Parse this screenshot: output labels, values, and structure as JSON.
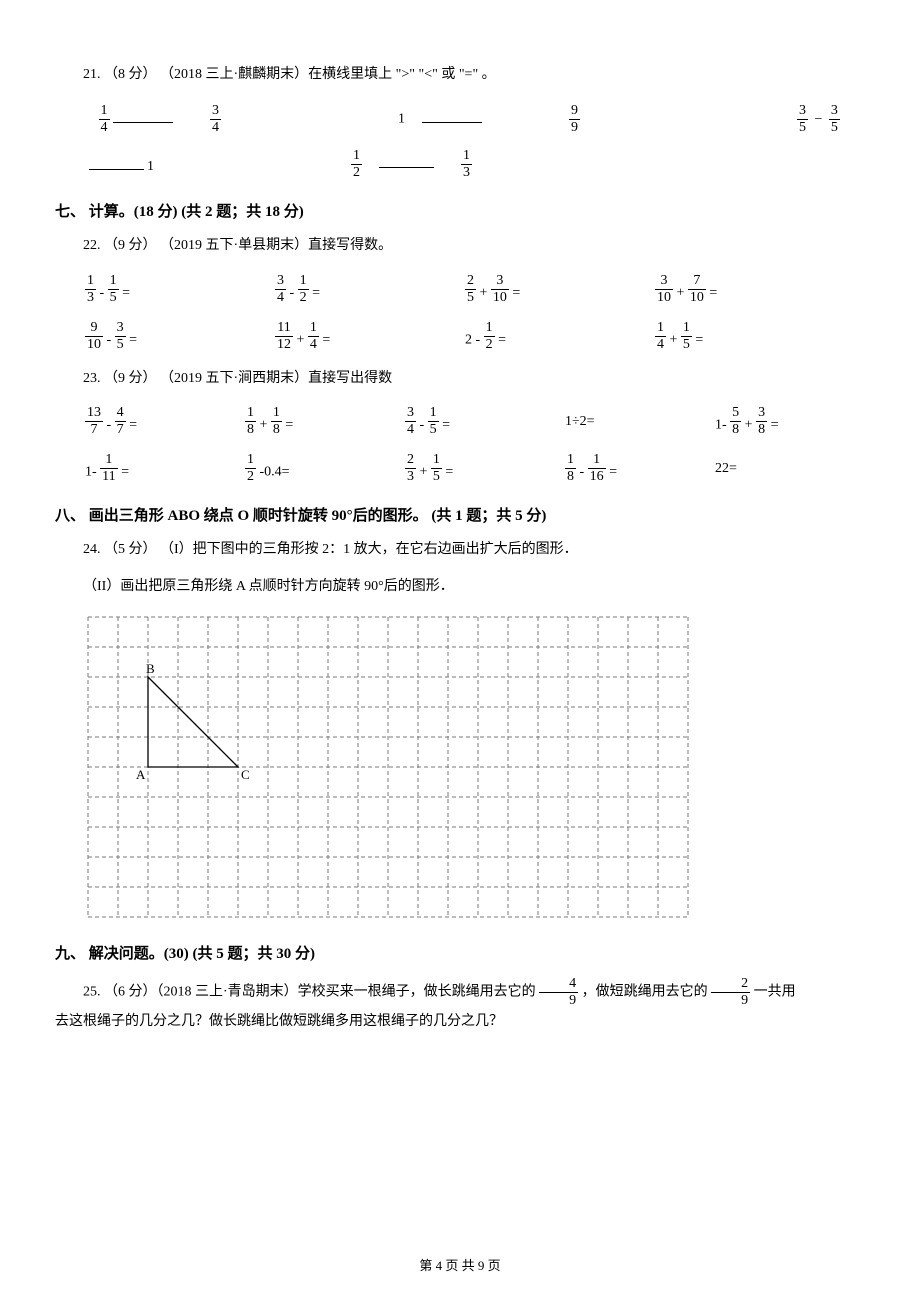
{
  "q21": {
    "prefix": "21. （8 分） （2018 三上·麒麟期末）在横线里填上",
    "sym1": "\">\"",
    "sym2": "\"<\"",
    "or": "或",
    "sym3": "\"=\"",
    "suffix": "。",
    "items": [
      {
        "left_n": "1",
        "left_d": "4",
        "blank_w": 60,
        "right_n": "3",
        "right_d": "4"
      },
      {
        "left_plain": "1",
        "blank_w": 60,
        "right_n": "9",
        "right_d": "9"
      },
      {
        "right_expr": true,
        "a_n": "3",
        "a_d": "5",
        "op": "−",
        "b_n": "3",
        "b_d": "5",
        "blank_w": 55,
        "tail": "1"
      },
      {
        "left_n": "1",
        "left_d": "2",
        "blank_w": 55,
        "right_n": "1",
        "right_d": "3"
      }
    ]
  },
  "sec7": {
    "title": "七、 计算。(18 分)  (共 2 题；共 18 分)"
  },
  "q22": {
    "header": "22. （9 分） （2019 五下·单县期末）直接写得数。",
    "rows": [
      [
        {
          "a_n": "1",
          "a_d": "3",
          "op": "-",
          "b_n": "1",
          "b_d": "5"
        },
        {
          "a_n": "3",
          "a_d": "4",
          "op": "-",
          "b_n": "1",
          "b_d": "2"
        },
        {
          "a_n": "2",
          "a_d": "5",
          "op": "+",
          "b_n": "3",
          "b_d": "10"
        },
        {
          "a_n": "3",
          "a_d": "10",
          "op": "+",
          "b_n": "7",
          "b_d": "10"
        }
      ],
      [
        {
          "a_n": "9",
          "a_d": "10",
          "op": "-",
          "b_n": "3",
          "b_d": "5"
        },
        {
          "a_n": "11",
          "a_d": "12",
          "op": "+",
          "b_n": "1",
          "b_d": "4"
        },
        {
          "a_plain": "2",
          "op": "-",
          "b_n": "1",
          "b_d": "2"
        },
        {
          "a_n": "1",
          "a_d": "4",
          "op": "+",
          "b_n": "1",
          "b_d": "5"
        }
      ]
    ]
  },
  "q23": {
    "header": "23. （9 分） （2019 五下·涧西期末）直接写出得数",
    "rows": [
      [
        {
          "a_n": "13",
          "a_d": "7",
          "op": "-",
          "b_n": "4",
          "b_d": "7"
        },
        {
          "a_n": "1",
          "a_d": "8",
          "op": "+",
          "b_n": "1",
          "b_d": "8"
        },
        {
          "a_n": "3",
          "a_d": "4",
          "op": "-",
          "b_n": "1",
          "b_d": "5"
        },
        {
          "plain": "1÷2="
        },
        {
          "lead": "1-",
          "a_n": "5",
          "a_d": "8",
          "op": "+",
          "b_n": "3",
          "b_d": "8"
        }
      ],
      [
        {
          "lead": "1-",
          "a_n": "1",
          "a_d": "11",
          "no_b": true
        },
        {
          "a_n": "1",
          "a_d": "2",
          "tail": "-0.4="
        },
        {
          "a_n": "2",
          "a_d": "3",
          "op": "+",
          "b_n": "1",
          "b_d": "5"
        },
        {
          "a_n": "1",
          "a_d": "8",
          "op": "-",
          "b_n": "1",
          "b_d": "16"
        },
        {
          "plain": "22="
        }
      ]
    ]
  },
  "sec8": {
    "title": "八、 画出三角形 ABO 绕点 O 顺时针旋转 90°后的图形。 (共 1 题；共 5 分)"
  },
  "q24": {
    "line1": "24. （5 分） （I）把下图中的三角形按 2：1 放大，在它右边画出扩大后的图形．",
    "line2": "（II）画出把原三角形绕 A 点顺时针方向旋转 90°后的图形．",
    "labels": {
      "A": "A",
      "B": "B",
      "C": "C"
    },
    "grid": {
      "cols": 20,
      "rows": 10,
      "cell": 30,
      "stroke": "#7a7a7a",
      "dash": "4 3",
      "tri_stroke": "#000",
      "A": [
        2,
        5
      ],
      "B": [
        2,
        2
      ],
      "C": [
        5,
        5
      ]
    }
  },
  "sec9": {
    "title": "九、 解决问题。(30)  (共 5 题；共 30 分)"
  },
  "q25": {
    "p1a": "25. （6 分）（2018 三上·青岛期末）学校买来一根绳子，做长跳绳用去它的 ",
    "f1_n": "4",
    "f1_d": "9",
    "p1b": " ，做短跳绳用去它的 ",
    "f2_n": "2",
    "f2_d": "9",
    "p1c": " 一共用",
    "p2": "去这根绳子的几分之几？做长跳绳比做短跳绳多用这根绳子的几分之几？"
  },
  "footer": "第 4 页 共 9 页"
}
